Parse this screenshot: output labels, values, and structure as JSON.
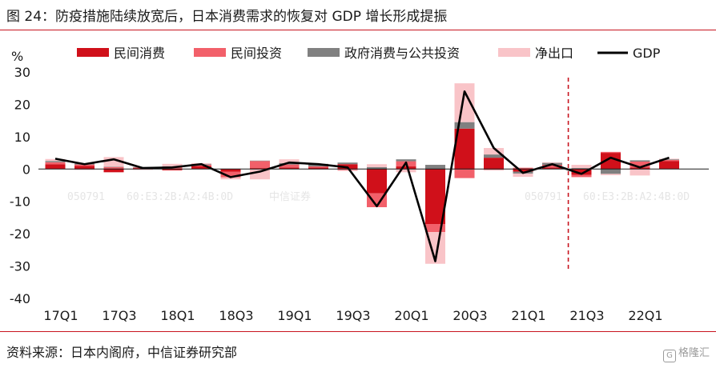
{
  "title": "图 24：防疫措施陆续放宽后，日本消费需求的恢复对 GDP 增长形成提振",
  "source": "资料来源：日本内阁府，中信证券研究部",
  "logo_text": "格隆汇",
  "watermarks": [
    "050791",
    "60:E3:2B:A2:4B:0D",
    "中信证券",
    "050791",
    "60:E3:2B:A2:4B:0D"
  ],
  "chart_data": {
    "type": "bar",
    "stacked": true,
    "ylabel": "%",
    "ylim": [
      -40,
      30
    ],
    "yticks": [
      30,
      20,
      10,
      0,
      -10,
      -20,
      -30,
      -40
    ],
    "categories": [
      "17Q1",
      "17Q2",
      "17Q3",
      "17Q4",
      "18Q1",
      "18Q2",
      "18Q3",
      "18Q4",
      "19Q1",
      "19Q2",
      "19Q3",
      "19Q4",
      "20Q1",
      "20Q2",
      "20Q3",
      "20Q4",
      "21Q1",
      "21Q2",
      "21Q3",
      "21Q4",
      "22Q1",
      "22Q2"
    ],
    "xtick_labels": [
      "17Q1",
      "17Q3",
      "18Q1",
      "18Q3",
      "19Q1",
      "19Q3",
      "20Q1",
      "20Q3",
      "21Q1",
      "21Q3",
      "22Q1"
    ],
    "series": [
      {
        "name": "民间消费",
        "kind": "bar",
        "color": "#d0101a",
        "values": [
          1.5,
          1.0,
          -1.0,
          0.3,
          -0.4,
          0.9,
          -0.8,
          0.3,
          0.5,
          0.5,
          1.5,
          -7.5,
          0.8,
          -17.0,
          12.5,
          3.5,
          -0.8,
          0.5,
          -1.8,
          5.0,
          0.5,
          2.5
        ]
      },
      {
        "name": "民间投资",
        "kind": "bar",
        "color": "#f2606a",
        "values": [
          0.6,
          0.4,
          0.6,
          0.2,
          0.6,
          0.4,
          -1.8,
          2.2,
          0.9,
          0.3,
          -0.3,
          -4.3,
          1.6,
          -2.5,
          -2.8,
          -0.3,
          0.4,
          0.8,
          -0.7,
          0.3,
          1.8,
          0.3
        ]
      },
      {
        "name": "政府消费与公共投资",
        "kind": "bar",
        "color": "#808080",
        "values": [
          0.4,
          0.3,
          0.1,
          0.1,
          0.2,
          0.2,
          0.1,
          0.1,
          0.4,
          0.8,
          0.5,
          0.6,
          0.6,
          1.3,
          2.0,
          1.0,
          -0.6,
          0.6,
          0.3,
          -1.5,
          0.4,
          0.2
        ]
      },
      {
        "name": "净出口",
        "kind": "bar",
        "color": "#f9c4c8",
        "values": [
          0.6,
          -0.3,
          3.0,
          -0.3,
          0.8,
          0.3,
          -0.6,
          -3.2,
          1.2,
          -0.2,
          -0.3,
          0.9,
          -1.0,
          -9.8,
          12.0,
          2.0,
          -1.0,
          0.2,
          1.0,
          -0.4,
          -2.0,
          0.2
        ]
      },
      {
        "name": "GDP",
        "kind": "line",
        "color": "#000000",
        "values": [
          3.2,
          1.5,
          3.0,
          0.3,
          0.5,
          1.5,
          -2.5,
          -0.8,
          2.0,
          1.5,
          0.5,
          -11.5,
          2.0,
          -28.5,
          24.0,
          6.5,
          -1.2,
          1.5,
          -1.5,
          3.5,
          0.5,
          3.5
        ]
      }
    ],
    "reference_line": {
      "after_category": "21Q2",
      "style": "dashed",
      "color": "#c8141e"
    },
    "legend": "top"
  }
}
